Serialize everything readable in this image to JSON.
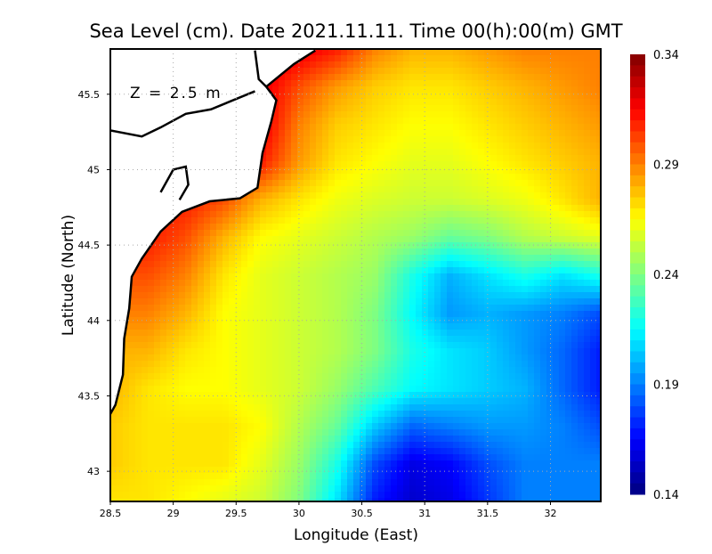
{
  "chart_data": {
    "type": "heatmap",
    "title": "Sea Level (cm). Date 2021.11.11. Time 00(h):00(m) GMT",
    "annotation": "Z = 2.5 m",
    "xlabel": "Longitude (East)",
    "ylabel": "Latitude (North)",
    "xlim": [
      28.5,
      32.4
    ],
    "ylim": [
      42.8,
      45.8
    ],
    "xticks": [
      28.5,
      29,
      29.5,
      30,
      30.5,
      31,
      31.5,
      32
    ],
    "xtick_labels": [
      "28.5",
      "29",
      "29.5",
      "30",
      "30.5",
      "31",
      "31.5",
      "32"
    ],
    "yticks": [
      43,
      43.5,
      44,
      44.5,
      45,
      45.5
    ],
    "ytick_labels": [
      "43",
      "43.5",
      "44",
      "44.5",
      "45",
      "45.5"
    ],
    "grid": true,
    "colorbar": {
      "range": [
        0.14,
        0.34
      ],
      "ticks": [
        "0.34",
        "0.29",
        "0.24",
        "0.19",
        "0.14"
      ],
      "colormap": [
        "#00007f",
        "#0000ff",
        "#0080ff",
        "#00ffff",
        "#80ff80",
        "#ffff00",
        "#ff8000",
        "#ff0000",
        "#800000"
      ]
    },
    "grid_lon": [
      28.5,
      28.8,
      29.1,
      29.4,
      29.7,
      30.0,
      30.3,
      30.6,
      30.9,
      31.2,
      31.5,
      31.8,
      32.1,
      32.4
    ],
    "grid_lat": [
      45.8,
      45.55,
      45.3,
      45.05,
      44.8,
      44.55,
      44.3,
      44.05,
      43.8,
      43.55,
      43.3,
      43.05,
      42.8
    ],
    "values": [
      [
        null,
        null,
        null,
        null,
        0.325,
        0.32,
        0.31,
        0.29,
        0.28,
        0.28,
        0.285,
        0.29,
        0.29,
        0.29
      ],
      [
        null,
        null,
        null,
        null,
        0.32,
        0.3,
        0.285,
        0.275,
        0.27,
        0.27,
        0.275,
        0.28,
        0.285,
        0.29
      ],
      [
        null,
        null,
        null,
        null,
        0.32,
        0.29,
        0.275,
        0.27,
        0.265,
        0.265,
        0.27,
        0.275,
        0.28,
        0.285
      ],
      [
        null,
        null,
        null,
        null,
        0.31,
        0.285,
        0.27,
        0.265,
        0.26,
        0.26,
        0.265,
        0.27,
        0.275,
        0.28
      ],
      [
        null,
        null,
        0.31,
        0.3,
        0.28,
        0.27,
        0.262,
        0.258,
        0.255,
        0.255,
        0.258,
        0.262,
        0.27,
        0.28
      ],
      [
        null,
        0.31,
        0.3,
        0.28,
        0.265,
        0.26,
        0.255,
        0.25,
        0.245,
        0.235,
        0.24,
        0.25,
        0.255,
        0.26
      ],
      [
        null,
        0.3,
        0.29,
        0.27,
        0.26,
        0.255,
        0.25,
        0.245,
        0.22,
        0.2,
        0.21,
        0.22,
        0.21,
        0.22
      ],
      [
        null,
        0.29,
        0.28,
        0.265,
        0.26,
        0.255,
        0.25,
        0.24,
        0.215,
        0.195,
        0.2,
        0.195,
        0.19,
        0.18
      ],
      [
        null,
        0.28,
        0.27,
        0.265,
        0.26,
        0.255,
        0.25,
        0.24,
        0.22,
        0.21,
        0.205,
        0.195,
        0.185,
        0.17
      ],
      [
        0.28,
        0.27,
        0.265,
        0.265,
        0.26,
        0.255,
        0.245,
        0.23,
        0.215,
        0.21,
        0.205,
        0.2,
        0.185,
        0.17
      ],
      [
        0.275,
        0.27,
        0.27,
        0.27,
        0.265,
        0.25,
        0.235,
        0.205,
        0.185,
        0.19,
        0.195,
        0.195,
        0.19,
        0.18
      ],
      [
        0.275,
        0.27,
        0.27,
        0.27,
        0.26,
        0.245,
        0.22,
        0.18,
        0.16,
        0.165,
        0.18,
        0.19,
        0.19,
        0.19
      ],
      [
        0.27,
        0.27,
        0.265,
        0.26,
        0.255,
        0.24,
        0.21,
        0.17,
        0.155,
        0.16,
        0.175,
        0.19,
        0.19,
        0.19
      ]
    ],
    "coastline": [
      [
        30.13,
        45.79
      ],
      [
        29.96,
        45.7
      ],
      [
        29.74,
        45.55
      ],
      [
        29.82,
        45.46
      ],
      [
        29.78,
        45.32
      ],
      [
        29.71,
        45.11
      ],
      [
        29.67,
        44.88
      ],
      [
        29.53,
        44.81
      ],
      [
        29.29,
        44.79
      ],
      [
        29.07,
        44.72
      ],
      [
        28.9,
        44.59
      ],
      [
        28.75,
        44.41
      ],
      [
        28.67,
        44.29
      ],
      [
        28.65,
        44.08
      ],
      [
        28.61,
        43.88
      ],
      [
        28.6,
        43.64
      ],
      [
        28.54,
        43.44
      ],
      [
        28.5,
        43.38
      ]
    ],
    "inland_lines": [
      [
        [
          28.5,
          45.26
        ],
        [
          28.75,
          45.22
        ],
        [
          28.9,
          45.28
        ],
        [
          29.1,
          45.37
        ],
        [
          29.3,
          45.4
        ],
        [
          29.65,
          45.52
        ]
      ],
      [
        [
          29.65,
          45.79
        ],
        [
          29.68,
          45.6
        ],
        [
          29.74,
          45.55
        ]
      ],
      [
        [
          28.9,
          44.85
        ],
        [
          29.0,
          45.0
        ],
        [
          29.1,
          45.02
        ],
        [
          29.12,
          44.9
        ],
        [
          29.05,
          44.8
        ]
      ]
    ]
  }
}
